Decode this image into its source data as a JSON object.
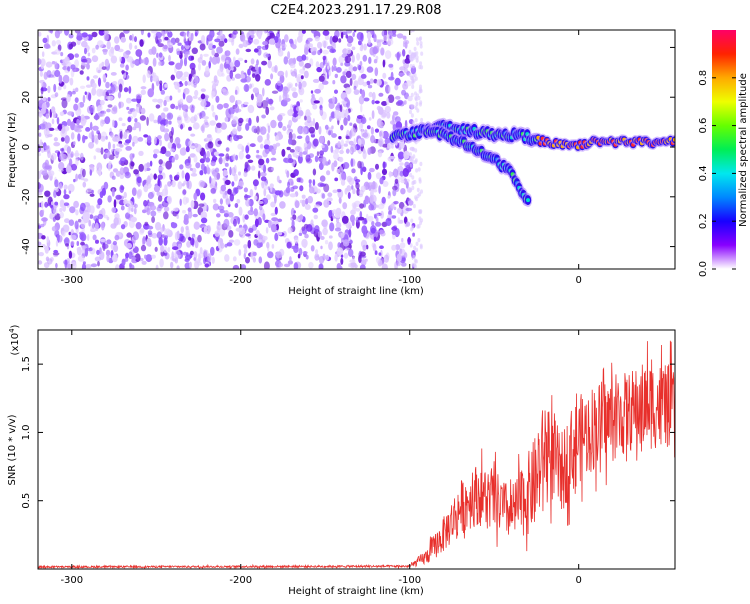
{
  "figure": {
    "title": "C2E4.2023.291.17.29.R08"
  },
  "colors": {
    "snr_line": "#e8302c",
    "axis": "#000000",
    "background": "#ffffff"
  },
  "chart_data": [
    {
      "type": "heatmap",
      "name": "spectrogram",
      "xlabel": "Height of straight line (km)",
      "ylabel": "Frequency (Hz)",
      "xlim": [
        -320,
        57
      ],
      "ylim": [
        -49,
        47
      ],
      "xticks": [
        -300,
        -200,
        -100,
        0
      ],
      "xtick_labels": [
        "-300",
        "-200",
        "-100",
        "0"
      ],
      "yticks": [
        -40,
        -20,
        0,
        20,
        40
      ],
      "ytick_labels": [
        "-40",
        "-20",
        "0",
        "20",
        "40"
      ],
      "noise_region_x": [
        -320,
        -100
      ],
      "signal_tracks": [
        {
          "name": "main-track",
          "x": [
            -110,
            -100,
            -90,
            -80,
            -70,
            -60,
            -50,
            -40,
            -30,
            -20,
            -10,
            0,
            10,
            20,
            30,
            40,
            50,
            57
          ],
          "y": [
            4,
            5,
            7,
            8,
            7,
            6,
            5,
            5,
            4,
            2,
            1,
            1,
            2,
            2,
            2,
            2,
            2,
            2
          ]
        },
        {
          "name": "lower-branch",
          "x": [
            -90,
            -80,
            -70,
            -60,
            -50,
            -40,
            -35,
            -30
          ],
          "y": [
            6,
            5,
            2,
            -1,
            -5,
            -10,
            -16,
            -22
          ]
        }
      ],
      "colorbar": {
        "label": "Normalized spectral amplitude",
        "range": [
          0,
          1
        ],
        "ticks": [
          0.0,
          0.2,
          0.4,
          0.6,
          0.8
        ],
        "tick_labels": [
          "0.0",
          "0.2",
          "0.4",
          "0.6",
          "0.8"
        ]
      }
    },
    {
      "type": "line",
      "name": "snr",
      "xlabel": "Height of straight line (km)",
      "ylabel": "SNR (10 * v/v)",
      "y_multiplier_label": "(x10",
      "y_multiplier_exp": "4",
      "xlim": [
        -320,
        57
      ],
      "ylim": [
        0,
        17500
      ],
      "xticks": [
        -300,
        -200,
        -100,
        0
      ],
      "xtick_labels": [
        "-300",
        "-200",
        "-100",
        "0"
      ],
      "yticks": [
        5000,
        10000,
        15000
      ],
      "ytick_labels": [
        "0.5",
        "1.0",
        "1.5"
      ],
      "envelope_x": [
        -320,
        -100,
        -90,
        -80,
        -70,
        -60,
        -50,
        -40,
        -30,
        -25,
        -20,
        -15,
        -10,
        -5,
        0,
        10,
        20,
        30,
        40,
        50,
        57
      ],
      "envelope_y": [
        150,
        200,
        900,
        2500,
        4500,
        5500,
        5000,
        4000,
        5500,
        6500,
        9000,
        8000,
        7000,
        8500,
        9500,
        10500,
        11000,
        11500,
        12000,
        12000,
        11800
      ],
      "envelope_amp": [
        60,
        80,
        600,
        1300,
        2000,
        2300,
        2300,
        2000,
        3000,
        3500,
        3500,
        3200,
        3000,
        3200,
        3200,
        3200,
        3200,
        3000,
        3300,
        3200,
        3000
      ]
    }
  ]
}
